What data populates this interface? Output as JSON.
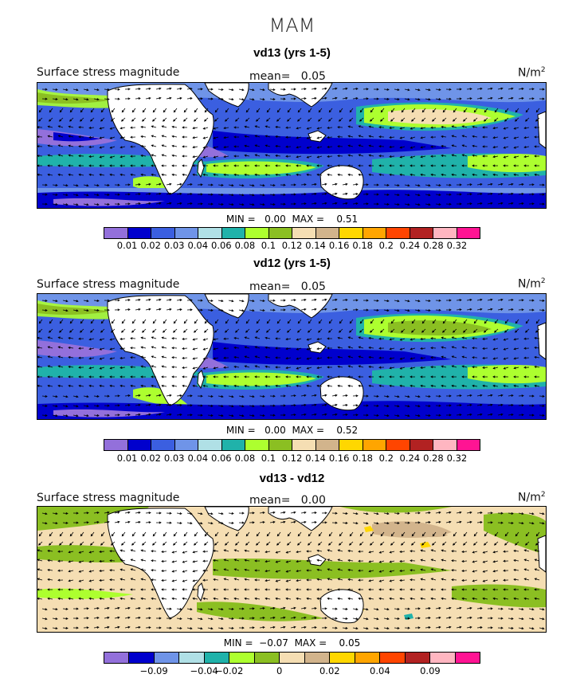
{
  "season": "MAM",
  "units_base": "N/m",
  "units_exp": "2",
  "panels": [
    {
      "title": "vd13 (yrs 1-5)",
      "label": "Surface stress magnitude",
      "mean_label": "mean=",
      "mean_value": "0.05",
      "min_label": "MIN =",
      "min_value": "0.00",
      "max_label": "MAX =",
      "max_value": "0.51",
      "colors": [
        "#9370db",
        "#0000cd",
        "#3b5fe0",
        "#6f94e8",
        "#b0e0e6",
        "#20b2aa",
        "#adff2f",
        "#8bbf22",
        "#f5deb3",
        "#d2b48c",
        "#ffd700",
        "#ffa500",
        "#ff4500",
        "#b22222",
        "#ffb6c1",
        "#ff1493"
      ],
      "tick_labels": [
        "0.01",
        "0.02",
        "0.03",
        "0.04",
        "0.06",
        "0.08",
        "0.1",
        "0.12",
        "0.14",
        "0.16",
        "0.18",
        "0.2",
        "0.24",
        "0.28",
        "0.32"
      ]
    },
    {
      "title": "vd12 (yrs 1-5)",
      "label": "Surface stress magnitude",
      "mean_label": "mean=",
      "mean_value": "0.05",
      "min_label": "MIN =",
      "min_value": "0.00",
      "max_label": "MAX =",
      "max_value": "0.52",
      "colors": [
        "#9370db",
        "#0000cd",
        "#3b5fe0",
        "#6f94e8",
        "#b0e0e6",
        "#20b2aa",
        "#adff2f",
        "#8bbf22",
        "#f5deb3",
        "#d2b48c",
        "#ffd700",
        "#ffa500",
        "#ff4500",
        "#b22222",
        "#ffb6c1",
        "#ff1493"
      ],
      "tick_labels": [
        "0.01",
        "0.02",
        "0.03",
        "0.04",
        "0.06",
        "0.08",
        "0.1",
        "0.12",
        "0.14",
        "0.16",
        "0.18",
        "0.2",
        "0.24",
        "0.28",
        "0.32"
      ]
    },
    {
      "title": "vd13 - vd12",
      "label": "Surface stress magnitude",
      "mean_label": "mean=",
      "mean_value": "0.00",
      "min_label": "MIN =",
      "min_value": "−0.07",
      "max_label": "MAX =",
      "max_value": "0.05",
      "colors": [
        "#9370db",
        "#0000cd",
        "#6f94e8",
        "#b0e0e6",
        "#20b2aa",
        "#adff2f",
        "#8bbf22",
        "#f5deb3",
        "#d2b48c",
        "#ffd700",
        "#ffa500",
        "#ff4500",
        "#b22222",
        "#ffb6c1",
        "#ff1493"
      ],
      "tick_labels": [
        "−0.09",
        "−0.04",
        "−0.02",
        "0",
        "0.02",
        "0.04",
        "0.09"
      ]
    }
  ]
}
